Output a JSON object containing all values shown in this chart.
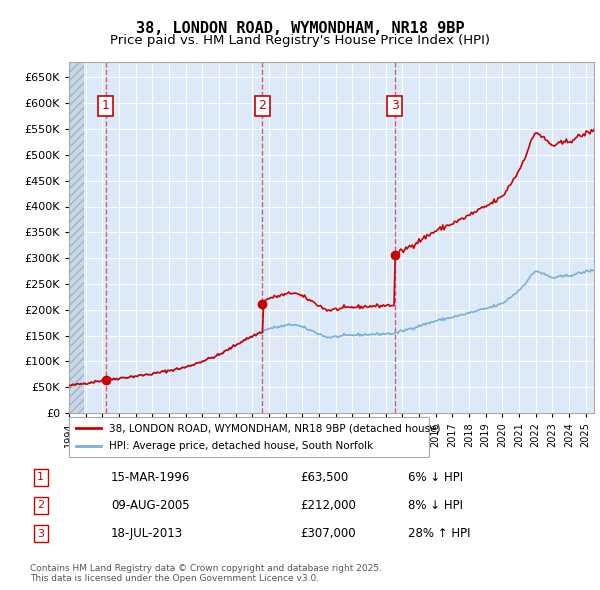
{
  "title": "38, LONDON ROAD, WYMONDHAM, NR18 9BP",
  "subtitle": "Price paid vs. HM Land Registry's House Price Index (HPI)",
  "sales": [
    {
      "date": "1996-03-15",
      "price": 63500,
      "label": "1"
    },
    {
      "date": "2005-08-09",
      "price": 212000,
      "label": "2"
    },
    {
      "date": "2013-07-18",
      "price": 307000,
      "label": "3"
    }
  ],
  "sale_dates_decimal": [
    1996.204,
    2005.607,
    2013.543
  ],
  "sale_prices": [
    63500,
    212000,
    307000
  ],
  "hpi_base_value": 63500,
  "hpi_base_date": 1996.204,
  "legend_entries": [
    "38, LONDON ROAD, WYMONDHAM, NR18 9BP (detached house)",
    "HPI: Average price, detached house, South Norfolk"
  ],
  "table_rows": [
    [
      "1",
      "15-MAR-1996",
      "£63,500",
      "6% ↓ HPI"
    ],
    [
      "2",
      "09-AUG-2005",
      "£212,000",
      "8% ↓ HPI"
    ],
    [
      "3",
      "18-JUL-2013",
      "£307,000",
      "28% ↑ HPI"
    ]
  ],
  "footer": "Contains HM Land Registry data © Crown copyright and database right 2025.\nThis data is licensed under the Open Government Licence v3.0.",
  "ylim": [
    0,
    680000
  ],
  "xlim_start": 1994.0,
  "xlim_end": 2025.5,
  "background_color": "#dce9f8",
  "hatch_color": "#b0c4d8",
  "line_color_hpi": "#7ab0d4",
  "line_color_price": "#cc0000",
  "sale_marker_color": "#cc0000",
  "grid_color": "#ffffff",
  "dashed_line_color": "#cc4444"
}
